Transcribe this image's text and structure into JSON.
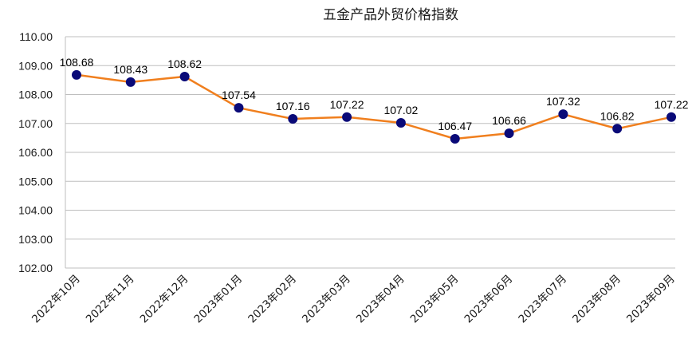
{
  "chart_data": {
    "type": "line",
    "title": "五金产品外贸价格指数",
    "xlabel": "",
    "ylabel": "",
    "categories": [
      "2022年10月",
      "2022年11月",
      "2022年12月",
      "2023年01月",
      "2023年02月",
      "2023年03月",
      "2023年04月",
      "2023年05月",
      "2023年06月",
      "2023年07月",
      "2023年08月",
      "2023年09月"
    ],
    "series": [
      {
        "values": [
          108.68,
          108.43,
          108.62,
          107.54,
          107.16,
          107.22,
          107.02,
          106.47,
          106.66,
          107.32,
          106.82,
          107.22
        ]
      }
    ],
    "data_labels": [
      "108.68",
      "108.43",
      "108.62",
      "107.54",
      "107.16",
      "107.22",
      "107.02",
      "106.47",
      "106.66",
      "107.32",
      "106.82",
      "107.22"
    ],
    "ylim": [
      102,
      110
    ],
    "yticks": [
      "102.00",
      "103.00",
      "104.00",
      "105.00",
      "106.00",
      "107.00",
      "108.00",
      "109.00",
      "110.00"
    ],
    "grid": true,
    "legend": "none",
    "colors": {
      "line": "#F07F1E",
      "marker": "#0A0A78",
      "grid": "#BFBFBF",
      "axis": "#BFBFBF"
    }
  }
}
